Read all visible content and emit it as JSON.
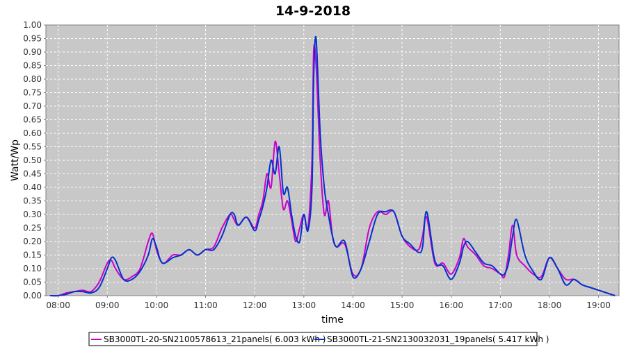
{
  "chart_data": {
    "type": "line",
    "title": "14-9-2018",
    "xlabel": "time",
    "ylabel": "Watt/Wp",
    "xlim": [
      "07:45",
      "19:25"
    ],
    "ylim": [
      0,
      1.0
    ],
    "grid": true,
    "legend_position": "bottom",
    "x_ticks": [
      "08:00",
      "09:00",
      "10:00",
      "11:00",
      "12:00",
      "13:00",
      "14:00",
      "15:00",
      "16:00",
      "17:00",
      "18:00",
      "19:00"
    ],
    "y_ticks": [
      "0.00",
      "0.05",
      "0.10",
      "0.15",
      "0.20",
      "0.25",
      "0.30",
      "0.35",
      "0.40",
      "0.45",
      "0.50",
      "0.55",
      "0.60",
      "0.65",
      "0.70",
      "0.75",
      "0.80",
      "0.85",
      "0.90",
      "0.95",
      "1.00"
    ],
    "colors": {
      "plot_background": "#c8c8c8",
      "grid": "#ffffff"
    },
    "series": [
      {
        "name": "SB3000TL-20-SN2100578613_21panels( 6.003 kWh )",
        "color": "#cc00cc",
        "x": [
          "07:50",
          "08:00",
          "08:10",
          "08:20",
          "08:30",
          "08:40",
          "08:50",
          "09:00",
          "09:05",
          "09:10",
          "09:20",
          "09:30",
          "09:40",
          "09:50",
          "09:55",
          "10:00",
          "10:05",
          "10:10",
          "10:20",
          "10:30",
          "10:40",
          "10:50",
          "11:00",
          "11:10",
          "11:20",
          "11:30",
          "11:35",
          "11:40",
          "11:50",
          "12:00",
          "12:05",
          "12:10",
          "12:15",
          "12:20",
          "12:25",
          "12:30",
          "12:35",
          "12:40",
          "12:45",
          "12:50",
          "12:55",
          "13:00",
          "13:05",
          "13:10",
          "13:12",
          "13:15",
          "13:20",
          "13:25",
          "13:30",
          "13:35",
          "13:40",
          "13:50",
          "14:00",
          "14:10",
          "14:20",
          "14:30",
          "14:40",
          "14:50",
          "15:00",
          "15:10",
          "15:20",
          "15:25",
          "15:30",
          "15:40",
          "15:50",
          "16:00",
          "16:10",
          "16:15",
          "16:20",
          "16:30",
          "16:40",
          "16:50",
          "17:00",
          "17:05",
          "17:10",
          "17:15",
          "17:20",
          "17:30",
          "17:40",
          "17:50",
          "18:00",
          "18:10",
          "18:20",
          "18:30",
          "18:40",
          "18:50",
          "19:00",
          "19:10",
          "19:20"
        ],
        "y": [
          0.0,
          0.0,
          0.01,
          0.015,
          0.02,
          0.015,
          0.05,
          0.12,
          0.13,
          0.1,
          0.06,
          0.07,
          0.1,
          0.2,
          0.23,
          0.17,
          0.13,
          0.12,
          0.15,
          0.15,
          0.17,
          0.15,
          0.17,
          0.18,
          0.25,
          0.3,
          0.28,
          0.26,
          0.29,
          0.25,
          0.3,
          0.35,
          0.45,
          0.4,
          0.57,
          0.45,
          0.32,
          0.35,
          0.28,
          0.2,
          0.25,
          0.3,
          0.25,
          0.5,
          0.9,
          0.85,
          0.5,
          0.3,
          0.35,
          0.22,
          0.18,
          0.19,
          0.08,
          0.1,
          0.25,
          0.31,
          0.3,
          0.31,
          0.22,
          0.18,
          0.17,
          0.22,
          0.29,
          0.12,
          0.12,
          0.08,
          0.14,
          0.21,
          0.18,
          0.15,
          0.11,
          0.1,
          0.08,
          0.07,
          0.15,
          0.26,
          0.15,
          0.11,
          0.08,
          0.07,
          0.14,
          0.1,
          0.06,
          0.06,
          0.04,
          0.03,
          0.02,
          0.01,
          0.0
        ]
      },
      {
        "name": "SB3000TL-21-SN2130032031_19panels( 5.417 kWh )",
        "color": "#0033cc",
        "x": [
          "07:50",
          "08:00",
          "08:10",
          "08:20",
          "08:30",
          "08:40",
          "08:50",
          "09:00",
          "09:05",
          "09:10",
          "09:20",
          "09:30",
          "09:40",
          "09:50",
          "09:55",
          "10:00",
          "10:05",
          "10:10",
          "10:20",
          "10:30",
          "10:40",
          "10:50",
          "11:00",
          "11:10",
          "11:20",
          "11:30",
          "11:35",
          "11:40",
          "11:50",
          "12:00",
          "12:05",
          "12:10",
          "12:15",
          "12:20",
          "12:25",
          "12:30",
          "12:35",
          "12:40",
          "12:45",
          "12:50",
          "12:55",
          "13:00",
          "13:05",
          "13:10",
          "13:12",
          "13:15",
          "13:20",
          "13:25",
          "13:30",
          "13:35",
          "13:40",
          "13:50",
          "14:00",
          "14:10",
          "14:20",
          "14:30",
          "14:40",
          "14:50",
          "15:00",
          "15:10",
          "15:20",
          "15:25",
          "15:30",
          "15:40",
          "15:50",
          "16:00",
          "16:10",
          "16:15",
          "16:20",
          "16:30",
          "16:40",
          "16:50",
          "17:00",
          "17:05",
          "17:10",
          "17:15",
          "17:20",
          "17:30",
          "17:40",
          "17:50",
          "18:00",
          "18:10",
          "18:20",
          "18:30",
          "18:40",
          "18:50",
          "19:00",
          "19:10",
          "19:20"
        ],
        "y": [
          0.0,
          0.0,
          0.005,
          0.015,
          0.015,
          0.01,
          0.03,
          0.1,
          0.14,
          0.13,
          0.06,
          0.06,
          0.09,
          0.15,
          0.21,
          0.18,
          0.13,
          0.12,
          0.14,
          0.15,
          0.17,
          0.15,
          0.17,
          0.17,
          0.22,
          0.3,
          0.3,
          0.26,
          0.29,
          0.24,
          0.28,
          0.33,
          0.4,
          0.5,
          0.45,
          0.55,
          0.38,
          0.4,
          0.3,
          0.22,
          0.2,
          0.3,
          0.24,
          0.4,
          0.8,
          0.95,
          0.6,
          0.4,
          0.3,
          0.22,
          0.18,
          0.2,
          0.07,
          0.1,
          0.2,
          0.3,
          0.31,
          0.31,
          0.22,
          0.19,
          0.16,
          0.18,
          0.31,
          0.13,
          0.11,
          0.06,
          0.12,
          0.18,
          0.2,
          0.16,
          0.12,
          0.11,
          0.08,
          0.08,
          0.12,
          0.22,
          0.28,
          0.15,
          0.09,
          0.06,
          0.14,
          0.1,
          0.04,
          0.06,
          0.04,
          0.03,
          0.02,
          0.01,
          0.0
        ]
      }
    ]
  }
}
